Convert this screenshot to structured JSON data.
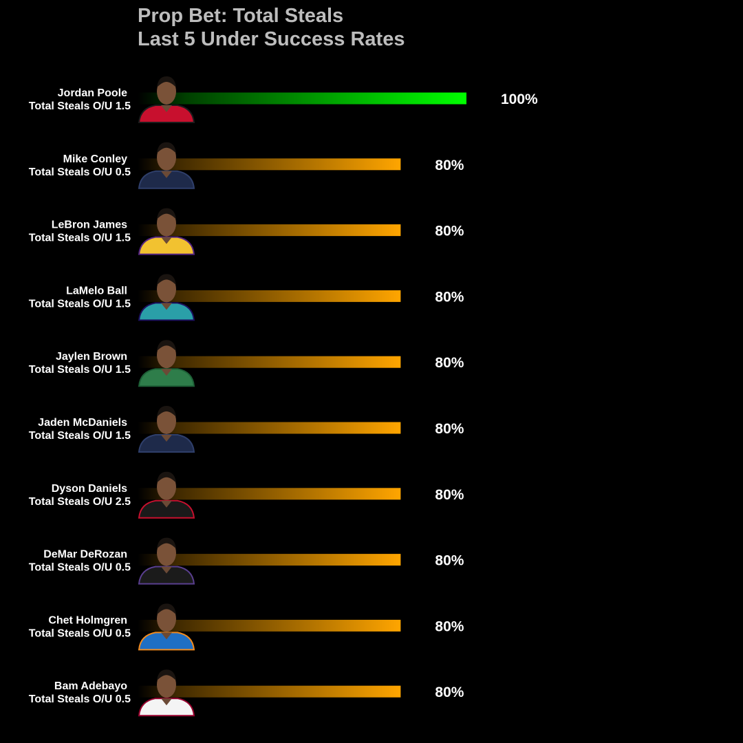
{
  "chart_data": {
    "type": "bar",
    "orientation": "horizontal",
    "title": "Prop Bet: Total Steals",
    "subtitle": "Last 5 Under Success Rates",
    "value_suffix": "%",
    "xlim": [
      0,
      100
    ],
    "categories": [
      {
        "name": "Jordan Poole",
        "line": "Total Steals O/U 1.5",
        "value": 100,
        "jersey": "red-black"
      },
      {
        "name": "Mike Conley",
        "line": "Total Steals O/U 0.5",
        "value": 80,
        "jersey": "navy"
      },
      {
        "name": "LeBron James",
        "line": "Total Steals O/U 1.5",
        "value": 80,
        "jersey": "gold"
      },
      {
        "name": "LaMelo Ball",
        "line": "Total Steals O/U 1.5",
        "value": 80,
        "jersey": "teal"
      },
      {
        "name": "Jaylen Brown",
        "line": "Total Steals O/U 1.5",
        "value": 80,
        "jersey": "green"
      },
      {
        "name": "Jaden McDaniels",
        "line": "Total Steals O/U 1.5",
        "value": 80,
        "jersey": "navy"
      },
      {
        "name": "Dyson Daniels",
        "line": "Total Steals O/U 2.5",
        "value": 80,
        "jersey": "black-red"
      },
      {
        "name": "DeMar DeRozan",
        "line": "Total Steals O/U 0.5",
        "value": 80,
        "jersey": "black-purple"
      },
      {
        "name": "Chet Holmgren",
        "line": "Total Steals O/U 0.5",
        "value": 80,
        "jersey": "blue"
      },
      {
        "name": "Bam Adebayo",
        "line": "Total Steals O/U 0.5",
        "value": 80,
        "jersey": "white"
      }
    ],
    "colors": {
      "top_bar": "#00ff00",
      "other_bars": "#ffa500",
      "background": "#000000",
      "title_text": "#bdbdbd",
      "label_text": "#ffffff"
    },
    "legend": "none",
    "grid": false
  }
}
